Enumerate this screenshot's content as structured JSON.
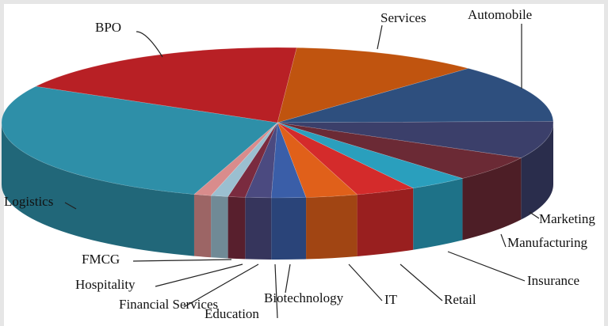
{
  "chart_data": {
    "type": "pie3d",
    "categories": [
      "Services",
      "Automobile",
      "Marketing",
      "Manufacturing",
      "Insurance",
      "Retail",
      "IT",
      "Biotechnology",
      "Education",
      "Financial Services",
      "Hospitality",
      "FMCG",
      "Logistics",
      "BPO"
    ],
    "values": [
      11,
      12.5,
      8,
      5.5,
      3.5,
      3.5,
      3,
      2,
      1.5,
      1,
      1,
      1,
      28,
      18
    ],
    "colors": [
      "#c0540f",
      "#2e4f7e",
      "#3b3f6a",
      "#6b2a35",
      "#2a9fbd",
      "#d42b2b",
      "#e0601a",
      "#3a5ea8",
      "#4b4a80",
      "#7a2b3f",
      "#9bbfd0",
      "#d98c8c",
      "#2e8fa8",
      "#b82025"
    ]
  }
}
